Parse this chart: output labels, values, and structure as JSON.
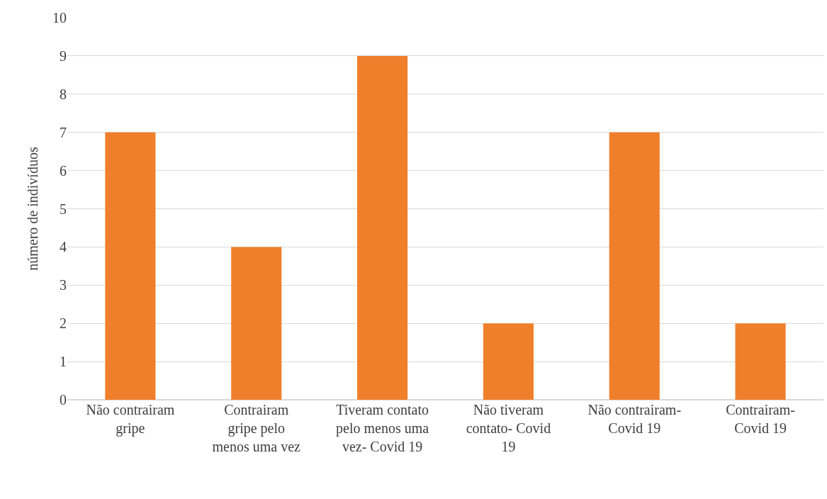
{
  "chart_data": {
    "type": "bar",
    "ylabel": "número de indivíduos",
    "categories": [
      "Não contrairam gripe",
      "Contrairam gripe pelo menos uma vez",
      "Tiveram contato pelo menos uma vez- Covid 19",
      "Não tiveram contato- Covid 19",
      "Não contrairam- Covid 19",
      "Contrairam- Covid 19"
    ],
    "values": [
      7,
      4,
      9,
      2,
      7,
      2
    ],
    "color": "#f07f2c",
    "ylim": [
      0,
      10
    ],
    "yticks": [
      0,
      1,
      2,
      3,
      4,
      5,
      6,
      7,
      8,
      9,
      10
    ],
    "grid": "y",
    "legend": false
  }
}
